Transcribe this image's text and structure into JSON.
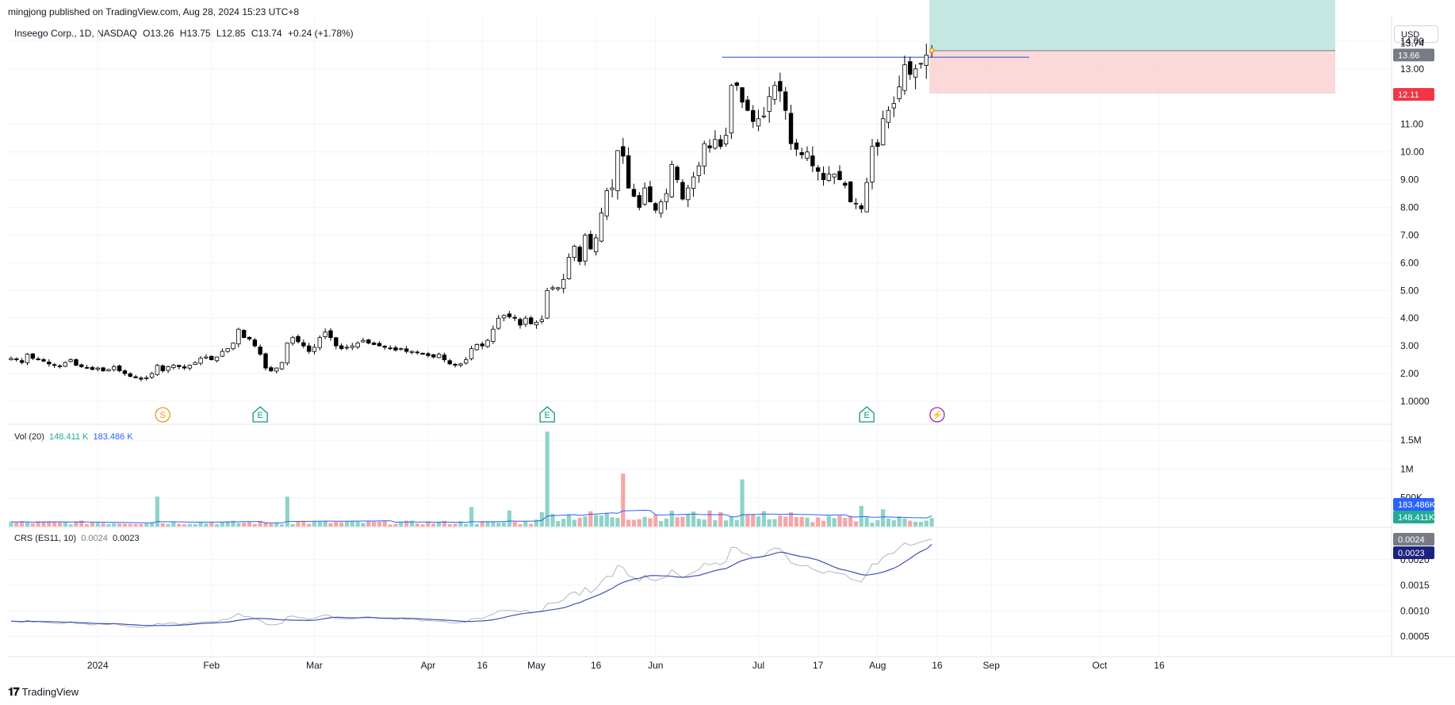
{
  "publish_line": "mingjong published on TradingView.com, Aug 28, 2024 15:23 UTC+8",
  "symbol": {
    "name": "Inseego Corp., 1D, NASDAQ",
    "open": "O13.26",
    "high": "H13.75",
    "low": "L12.85",
    "close": "C13.74",
    "change": "+0.24 (+1.78%)"
  },
  "currency": "USD",
  "footer_logo": "TradingView",
  "colors": {
    "up": "#ffffff",
    "down": "#000000",
    "vol_up": "#8ed3c8",
    "vol_down": "#f5a6a6",
    "vol_ma": "#2962ff",
    "crs": "#b2b5be",
    "crs_ma": "#3f51b5",
    "resistance": "#2f5fd6",
    "profit_zone": "#b2e0da",
    "loss_zone": "#fbcfcf"
  },
  "chart_data": [
    {
      "type": "candlestick",
      "title": "Inseego Corp., 1D, NASDAQ",
      "y_ticks": [
        "1.0000",
        "2.00",
        "3.00",
        "4.00",
        "5.00",
        "6.00",
        "7.00",
        "8.00",
        "9.00",
        "10.00",
        "11.00",
        "13.00",
        "14.00"
      ],
      "ylim": [
        0.6,
        14.8
      ],
      "x_ticks": [
        {
          "label": "2024",
          "i": 16
        },
        {
          "label": "Feb",
          "i": 37
        },
        {
          "label": "Mar",
          "i": 56
        },
        {
          "label": "Apr",
          "i": 77
        },
        {
          "label": "16",
          "i": 87
        },
        {
          "label": "May",
          "i": 97
        },
        {
          "label": "16",
          "i": 108
        },
        {
          "label": "Jun",
          "i": 119
        },
        {
          "label": "Jul",
          "i": 138
        },
        {
          "label": "17",
          "i": 149
        },
        {
          "label": "Aug",
          "i": 160
        },
        {
          "label": "16",
          "i": 171
        },
        {
          "label": "Sep",
          "i": 181
        },
        {
          "label": "Oct",
          "i": 201
        },
        {
          "label": "16",
          "i": 212
        }
      ],
      "closes": [
        2.55,
        2.5,
        2.4,
        2.7,
        2.55,
        2.5,
        2.45,
        2.35,
        2.3,
        2.25,
        2.4,
        2.5,
        2.3,
        2.25,
        2.2,
        2.15,
        2.2,
        2.1,
        2.15,
        2.25,
        2.1,
        2.0,
        1.9,
        1.85,
        1.8,
        1.85,
        2.0,
        2.3,
        2.1,
        2.25,
        2.3,
        2.25,
        2.2,
        2.3,
        2.4,
        2.55,
        2.6,
        2.5,
        2.6,
        2.8,
        2.9,
        3.1,
        3.6,
        3.3,
        3.25,
        3.0,
        2.7,
        2.2,
        2.1,
        2.2,
        2.4,
        3.1,
        3.3,
        3.15,
        3.0,
        2.8,
        2.95,
        3.3,
        3.5,
        3.3,
        3.0,
        2.9,
        2.95,
        3.0,
        3.1,
        3.2,
        3.1,
        3.05,
        3.0,
        2.95,
        2.9,
        2.85,
        2.9,
        2.8,
        2.8,
        2.75,
        2.7,
        2.65,
        2.6,
        2.7,
        2.5,
        2.35,
        2.3,
        2.35,
        2.5,
        2.9,
        3.05,
        3.0,
        3.2,
        3.6,
        4.0,
        4.1,
        4.05,
        4.0,
        3.75,
        4.0,
        3.8,
        3.85,
        3.95,
        5.0,
        5.1,
        5.1,
        5.4,
        6.2,
        6.6,
        6.05,
        7.0,
        6.5,
        6.9,
        7.8,
        8.6,
        8.7,
        10.05,
        9.85,
        8.7,
        8.4,
        8.0,
        8.7,
        8.2,
        7.9,
        8.2,
        8.5,
        9.55,
        9.0,
        8.3,
        8.7,
        9.1,
        9.5,
        10.3,
        10.15,
        10.45,
        10.2,
        10.6,
        12.4,
        12.4,
        11.8,
        11.5,
        11.1,
        11.2,
        11.3,
        12.0,
        12.4,
        12.2,
        11.5,
        10.3,
        10.1,
        9.9,
        10.0,
        9.5,
        9.3,
        9.0,
        9.2,
        9.2,
        9.0,
        8.8,
        8.2,
        8.15,
        7.95,
        8.9,
        10.2,
        10.2,
        11.2,
        11.5,
        11.75,
        12.35,
        13.15,
        12.8,
        13.0,
        13.2,
        13.5,
        13.74
      ],
      "markers": [
        {
          "i": 28,
          "label": "S"
        },
        {
          "i": 46,
          "label": "E"
        },
        {
          "i": 99,
          "label": "E"
        },
        {
          "i": 158,
          "label": "E"
        },
        {
          "i": 171,
          "label": "⚡"
        }
      ],
      "resistance_line": 13.42,
      "position": {
        "entry": 13.66,
        "stop": 12.11,
        "target": 15.5
      },
      "price_badges": [
        "13.74",
        "13.66",
        "12.11"
      ]
    },
    {
      "type": "bar",
      "title": "Vol (20)",
      "values_label": [
        "148.411 K",
        "183.486 K"
      ],
      "y_ticks": [
        "1.5M",
        "1M",
        "500K"
      ],
      "ylim": [
        0,
        1750000
      ],
      "ma_value": 183486,
      "last_value": 148411,
      "spikes": [
        {
          "i": 27,
          "v": 520000,
          "up": true
        },
        {
          "i": 51,
          "v": 520000,
          "up": true
        },
        {
          "i": 85,
          "v": 340000,
          "up": true
        },
        {
          "i": 92,
          "v": 280000,
          "up": true
        },
        {
          "i": 99,
          "v": 1650000,
          "up": true
        },
        {
          "i": 113,
          "v": 920000,
          "up": false
        },
        {
          "i": 135,
          "v": 820000,
          "up": true
        },
        {
          "i": 157,
          "v": 360000,
          "up": true
        },
        {
          "i": 161,
          "v": 300000,
          "up": true
        }
      ],
      "badges": [
        "183.486K",
        "148.411K"
      ]
    },
    {
      "type": "line",
      "title": "CRS (ES11, 10)",
      "values_label": [
        "0.0024",
        "0.0023"
      ],
      "y_ticks": [
        "0.0020",
        "0.0015",
        "0.0010",
        "0.0005"
      ],
      "ylim": [
        0.0002,
        0.0026
      ],
      "badges": [
        "0.0024",
        "0.0023"
      ]
    }
  ]
}
